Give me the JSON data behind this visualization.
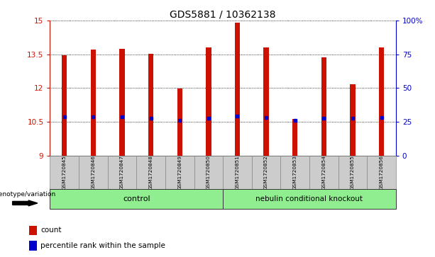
{
  "title": "GDS5881 / 10362138",
  "samples": [
    "GSM1720845",
    "GSM1720846",
    "GSM1720847",
    "GSM1720848",
    "GSM1720849",
    "GSM1720850",
    "GSM1720851",
    "GSM1720852",
    "GSM1720853",
    "GSM1720854",
    "GSM1720855",
    "GSM1720856"
  ],
  "bar_tops": [
    13.47,
    13.72,
    13.75,
    13.52,
    11.98,
    13.82,
    14.92,
    13.82,
    10.64,
    13.35,
    12.18,
    13.82
  ],
  "blue_markers": [
    10.72,
    10.72,
    10.72,
    10.66,
    10.55,
    10.66,
    10.74,
    10.7,
    10.55,
    10.66,
    10.66,
    10.7
  ],
  "bar_bottom": 9.0,
  "ylim_left": [
    9.0,
    15.0
  ],
  "ylim_right": [
    0,
    100
  ],
  "yticks_left": [
    9,
    10.5,
    12,
    13.5,
    15
  ],
  "ytick_labels_left": [
    "9",
    "10.5",
    "12",
    "13.5",
    "15"
  ],
  "yticks_right": [
    0,
    25,
    50,
    75,
    100
  ],
  "ytick_labels_right": [
    "0",
    "25",
    "50",
    "75",
    "100%"
  ],
  "bar_color": "#CC1100",
  "blue_color": "#0000CC",
  "group_label_prefix": "genotype/variation",
  "legend_count_label": "count",
  "legend_pct_label": "percentile rank within the sample",
  "bar_width": 0.18,
  "grid_color": "#000000",
  "axis_bg": "#FFFFFF",
  "sample_area_bg": "#CCCCCC",
  "title_fontsize": 10,
  "tick_fontsize": 7.5,
  "label_fontsize": 7.5,
  "sample_fontsize": 5.2
}
